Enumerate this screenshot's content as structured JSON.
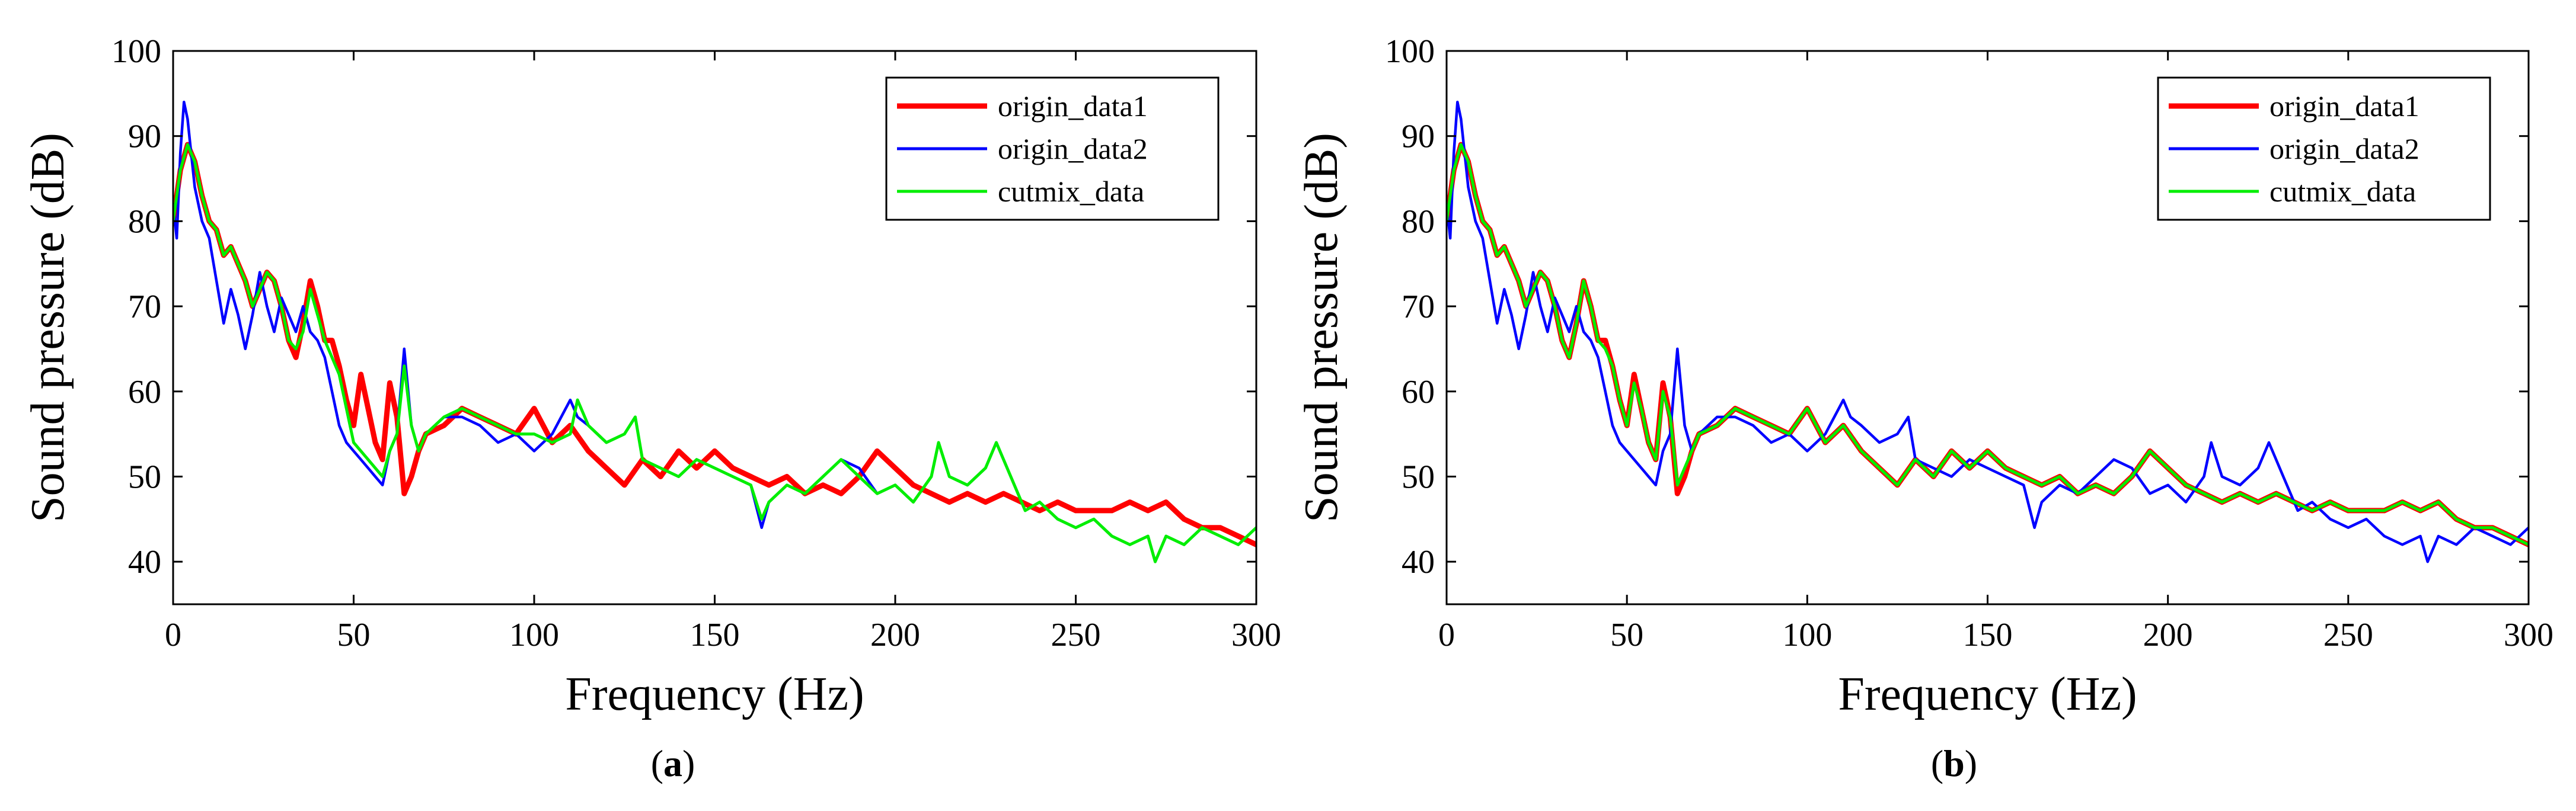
{
  "chart_data": [
    {
      "type": "line",
      "caption": "(a)",
      "caption_prefix": "(",
      "caption_letter": "a",
      "caption_suffix": ")",
      "xlabel": "Frequency (Hz)",
      "ylabel": "Sound pressure (dB)",
      "xlim": [
        0,
        300
      ],
      "ylim": [
        35,
        100
      ],
      "xticks": [
        0,
        50,
        100,
        150,
        200,
        250,
        300
      ],
      "yticks": [
        40,
        50,
        60,
        70,
        80,
        90,
        100
      ],
      "grid": false,
      "legend_position": "top-right",
      "series": [
        {
          "name": "origin_data1",
          "color": "#ff0000",
          "x": [
            0,
            2,
            4,
            6,
            8,
            10,
            12,
            14,
            16,
            18,
            20,
            22,
            24,
            26,
            28,
            30,
            32,
            34,
            36,
            38,
            40,
            42,
            44,
            46,
            48,
            50,
            52,
            54,
            56,
            58,
            60,
            62,
            64,
            66,
            68,
            70,
            75,
            80,
            85,
            90,
            95,
            100,
            105,
            110,
            115,
            120,
            125,
            130,
            135,
            140,
            145,
            150,
            155,
            160,
            165,
            170,
            175,
            180,
            185,
            190,
            195,
            200,
            205,
            210,
            215,
            220,
            225,
            230,
            235,
            240,
            245,
            250,
            255,
            260,
            265,
            270,
            275,
            280,
            285,
            290,
            295,
            300
          ],
          "y": [
            80,
            86,
            89,
            87,
            83,
            80,
            79,
            76,
            77,
            75,
            73,
            70,
            72,
            74,
            73,
            70,
            66,
            64,
            68,
            73,
            70,
            66,
            66,
            63,
            59,
            56,
            62,
            58,
            54,
            52,
            61,
            57,
            48,
            50,
            53,
            55,
            56,
            58,
            57,
            56,
            55,
            58,
            54,
            56,
            53,
            51,
            49,
            52,
            50,
            53,
            51,
            53,
            51,
            50,
            49,
            50,
            48,
            49,
            48,
            50,
            53,
            51,
            49,
            48,
            47,
            48,
            47,
            48,
            47,
            46,
            47,
            46,
            46,
            46,
            47,
            46,
            47,
            45,
            44,
            44,
            43,
            42
          ]
        },
        {
          "name": "origin_data2",
          "color": "#0000ff",
          "x": [
            0,
            1,
            2,
            3,
            4,
            5,
            6,
            8,
            10,
            12,
            14,
            16,
            18,
            20,
            22,
            24,
            26,
            28,
            30,
            32,
            34,
            36,
            38,
            40,
            42,
            44,
            46,
            48,
            50,
            52,
            54,
            56,
            58,
            60,
            62,
            64,
            66,
            68,
            70,
            75,
            80,
            85,
            90,
            95,
            100,
            105,
            110,
            112,
            115,
            120,
            125,
            128,
            130,
            135,
            140,
            145,
            150,
            155,
            160,
            163,
            165,
            170,
            175,
            180,
            185,
            190,
            195,
            200,
            205,
            210,
            212,
            215,
            220,
            225,
            228,
            232,
            236,
            240,
            245,
            250,
            255,
            260,
            265,
            270,
            272,
            275,
            280,
            285,
            290,
            295,
            300
          ],
          "y": [
            82,
            78,
            88,
            94,
            92,
            88,
            84,
            80,
            78,
            73,
            68,
            72,
            69,
            65,
            69,
            74,
            70,
            67,
            71,
            69,
            67,
            70,
            67,
            66,
            64,
            60,
            56,
            54,
            53,
            52,
            51,
            50,
            49,
            53,
            55,
            65,
            56,
            53,
            55,
            57,
            57,
            56,
            54,
            55,
            53,
            55,
            59,
            57,
            56,
            54,
            55,
            57,
            52,
            51,
            50,
            52,
            51,
            50,
            49,
            44,
            47,
            49,
            48,
            50,
            52,
            51,
            48,
            49,
            47,
            50,
            54,
            50,
            49,
            51,
            54,
            50,
            46,
            47,
            45,
            44,
            45,
            43,
            42,
            43,
            40,
            43,
            42,
            44,
            43,
            42,
            44
          ]
        },
        {
          "name": "cutmix_data",
          "color": "#00ee00",
          "x": [
            0,
            2,
            4,
            6,
            8,
            10,
            12,
            14,
            16,
            18,
            20,
            22,
            24,
            26,
            28,
            30,
            32,
            34,
            36,
            38,
            40,
            42,
            44,
            46,
            48,
            50,
            52,
            54,
            56,
            58,
            60,
            62,
            64,
            66,
            68,
            70,
            75,
            80,
            85,
            90,
            95,
            100,
            105,
            110,
            112,
            115,
            120,
            125,
            128,
            130,
            135,
            140,
            145,
            150,
            155,
            160,
            163,
            165,
            170,
            175,
            180,
            185,
            190,
            195,
            200,
            205,
            210,
            212,
            215,
            220,
            225,
            228,
            232,
            236,
            240,
            245,
            250,
            255,
            260,
            265,
            270,
            272,
            275,
            280,
            285,
            290,
            295,
            300
          ],
          "y": [
            80,
            86,
            89,
            87,
            83,
            80,
            79,
            76,
            77,
            75,
            73,
            70,
            72,
            74,
            73,
            70,
            66,
            65,
            67,
            72,
            69,
            66,
            64,
            62,
            58,
            54,
            53,
            52,
            51,
            50,
            53,
            55,
            63,
            56,
            53,
            55,
            57,
            58,
            57,
            56,
            55,
            55,
            54,
            55,
            59,
            56,
            54,
            55,
            57,
            52,
            51,
            50,
            52,
            51,
            50,
            49,
            45,
            47,
            49,
            48,
            50,
            52,
            50,
            48,
            49,
            47,
            50,
            54,
            50,
            49,
            51,
            54,
            50,
            46,
            47,
            45,
            44,
            45,
            43,
            42,
            43,
            40,
            43,
            42,
            44,
            43,
            42,
            44
          ]
        }
      ]
    },
    {
      "type": "line",
      "caption": "(b)",
      "caption_prefix": "(",
      "caption_letter": "b",
      "caption_suffix": ")",
      "xlabel": "Frequency (Hz)",
      "ylabel": "Sound pressure (dB)",
      "xlim": [
        0,
        300
      ],
      "ylim": [
        35,
        100
      ],
      "xticks": [
        0,
        50,
        100,
        150,
        200,
        250,
        300
      ],
      "yticks": [
        40,
        50,
        60,
        70,
        80,
        90,
        100
      ],
      "grid": false,
      "legend_position": "top-right",
      "series": [
        {
          "name": "origin_data1",
          "color": "#ff0000",
          "x": [
            0,
            2,
            4,
            6,
            8,
            10,
            12,
            14,
            16,
            18,
            20,
            22,
            24,
            26,
            28,
            30,
            32,
            34,
            36,
            38,
            40,
            42,
            44,
            46,
            48,
            50,
            52,
            54,
            56,
            58,
            60,
            62,
            64,
            66,
            68,
            70,
            75,
            80,
            85,
            90,
            95,
            100,
            105,
            110,
            115,
            120,
            125,
            130,
            135,
            140,
            145,
            150,
            155,
            160,
            165,
            170,
            175,
            180,
            185,
            190,
            195,
            200,
            205,
            210,
            215,
            220,
            225,
            230,
            235,
            240,
            245,
            250,
            255,
            260,
            265,
            270,
            275,
            280,
            285,
            290,
            295,
            300
          ],
          "y": [
            80,
            86,
            89,
            87,
            83,
            80,
            79,
            76,
            77,
            75,
            73,
            70,
            72,
            74,
            73,
            70,
            66,
            64,
            68,
            73,
            70,
            66,
            66,
            63,
            59,
            56,
            62,
            58,
            54,
            52,
            61,
            57,
            48,
            50,
            53,
            55,
            56,
            58,
            57,
            56,
            55,
            58,
            54,
            56,
            53,
            51,
            49,
            52,
            50,
            53,
            51,
            53,
            51,
            50,
            49,
            50,
            48,
            49,
            48,
            50,
            53,
            51,
            49,
            48,
            47,
            48,
            47,
            48,
            47,
            46,
            47,
            46,
            46,
            46,
            47,
            46,
            47,
            45,
            44,
            44,
            43,
            42
          ]
        },
        {
          "name": "origin_data2",
          "color": "#0000ff",
          "x": [
            0,
            1,
            2,
            3,
            4,
            5,
            6,
            8,
            10,
            12,
            14,
            16,
            18,
            20,
            22,
            24,
            26,
            28,
            30,
            32,
            34,
            36,
            38,
            40,
            42,
            44,
            46,
            48,
            50,
            52,
            54,
            56,
            58,
            60,
            62,
            64,
            66,
            68,
            70,
            75,
            80,
            85,
            90,
            95,
            100,
            105,
            110,
            112,
            115,
            120,
            125,
            128,
            130,
            135,
            140,
            145,
            150,
            155,
            160,
            163,
            165,
            170,
            175,
            180,
            185,
            190,
            195,
            200,
            205,
            210,
            212,
            215,
            220,
            225,
            228,
            232,
            236,
            240,
            245,
            250,
            255,
            260,
            265,
            270,
            272,
            275,
            280,
            285,
            290,
            295,
            300
          ],
          "y": [
            82,
            78,
            88,
            94,
            92,
            88,
            84,
            80,
            78,
            73,
            68,
            72,
            69,
            65,
            69,
            74,
            70,
            67,
            71,
            69,
            67,
            70,
            67,
            66,
            64,
            60,
            56,
            54,
            53,
            52,
            51,
            50,
            49,
            53,
            55,
            65,
            56,
            53,
            55,
            57,
            57,
            56,
            54,
            55,
            53,
            55,
            59,
            57,
            56,
            54,
            55,
            57,
            52,
            51,
            50,
            52,
            51,
            50,
            49,
            44,
            47,
            49,
            48,
            50,
            52,
            51,
            48,
            49,
            47,
            50,
            54,
            50,
            49,
            51,
            54,
            50,
            46,
            47,
            45,
            44,
            45,
            43,
            42,
            43,
            40,
            43,
            42,
            44,
            43,
            42,
            44
          ]
        },
        {
          "name": "cutmix_data",
          "color": "#00ee00",
          "x": [
            0,
            2,
            4,
            6,
            8,
            10,
            12,
            14,
            16,
            18,
            20,
            22,
            24,
            26,
            28,
            30,
            32,
            34,
            36,
            38,
            40,
            42,
            44,
            46,
            48,
            50,
            52,
            54,
            56,
            58,
            60,
            62,
            64,
            66,
            68,
            70,
            75,
            80,
            85,
            90,
            95,
            100,
            105,
            110,
            115,
            120,
            125,
            130,
            135,
            140,
            145,
            150,
            155,
            160,
            165,
            170,
            175,
            180,
            185,
            190,
            195,
            200,
            205,
            210,
            215,
            220,
            225,
            230,
            235,
            240,
            245,
            250,
            255,
            260,
            265,
            270,
            275,
            280,
            285,
            290,
            295,
            300
          ],
          "y": [
            80,
            86,
            89,
            87,
            83,
            80,
            79,
            76,
            77,
            75,
            73,
            70,
            72,
            74,
            73,
            70,
            66,
            64,
            68,
            73,
            70,
            66,
            65,
            63,
            59,
            56,
            61,
            58,
            54,
            52,
            60,
            57,
            49,
            51,
            53,
            55,
            56,
            58,
            57,
            56,
            55,
            58,
            54,
            56,
            53,
            51,
            49,
            52,
            50,
            53,
            51,
            53,
            51,
            50,
            49,
            50,
            48,
            49,
            48,
            50,
            53,
            51,
            49,
            48,
            47,
            48,
            47,
            48,
            47,
            46,
            47,
            46,
            46,
            46,
            47,
            46,
            47,
            45,
            44,
            44,
            43,
            42
          ]
        }
      ]
    }
  ]
}
